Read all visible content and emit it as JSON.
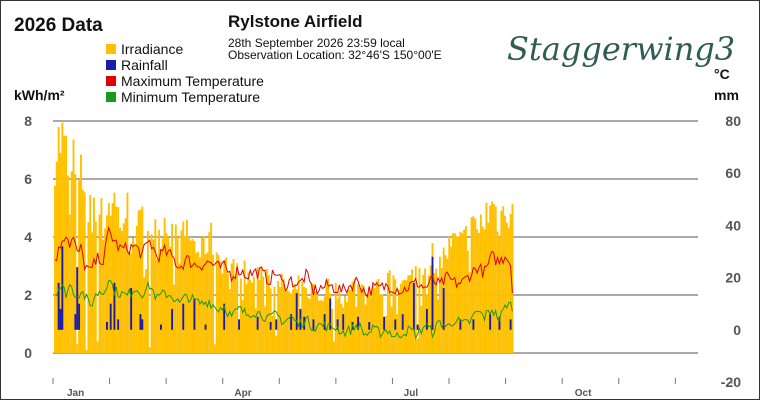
{
  "page_title": "2026 Data",
  "station": {
    "name": "Rylstone Airfield",
    "time_line": "28th September 2026  23:59 local",
    "location_line": "Observation Location:   32°46'S 150°00'E"
  },
  "logo_text": "Staggerwing3",
  "chart_data": {
    "type": "bar",
    "legend": [
      {
        "name": "Irradiance",
        "color": "#ffc000"
      },
      {
        "name": "Rainfall",
        "color": "#1c1ca8"
      },
      {
        "name": "Maximum Temperature",
        "color": "#e00000"
      },
      {
        "name": "Minimum Temperature",
        "color": "#1a9a1a"
      }
    ],
    "y_left": {
      "label": "kWh/m²",
      "min": -1,
      "max": 8,
      "ticks": [
        "8",
        "6",
        "4",
        "2",
        "0"
      ],
      "tick_values": [
        8,
        6,
        4,
        2,
        0
      ]
    },
    "y_right": {
      "label_top": "°C",
      "label_bottom": "mm",
      "min": -20,
      "max": 80,
      "ticks": [
        "80",
        "60",
        "40",
        "20",
        "0",
        "-20"
      ],
      "tick_values": [
        80,
        60,
        40,
        20,
        0,
        -20
      ]
    },
    "x_axis": {
      "start": "2026-01-01",
      "days": 365,
      "month_labels": [
        "Jan",
        "Apr",
        "Jul",
        "Oct"
      ],
      "month_label_days": [
        0,
        90,
        181,
        273
      ]
    },
    "grid": true,
    "series": {
      "irradiance_anchors": [
        [
          1,
          7.4
        ],
        [
          3,
          7.8
        ],
        [
          5,
          7.9
        ],
        [
          7,
          7.3
        ],
        [
          9,
          6.4
        ],
        [
          11,
          7.2
        ],
        [
          13,
          6.0
        ],
        [
          15,
          6.5
        ],
        [
          17,
          6.3
        ],
        [
          19,
          5.2
        ],
        [
          21,
          6.3
        ],
        [
          23,
          5.0
        ],
        [
          25,
          5.4
        ],
        [
          27,
          4.7
        ],
        [
          30,
          5.5
        ],
        [
          33,
          5.7
        ],
        [
          36,
          4.8
        ],
        [
          40,
          5.3
        ],
        [
          44,
          4.5
        ],
        [
          48,
          4.8
        ],
        [
          52,
          5.0
        ],
        [
          56,
          4.2
        ],
        [
          60,
          4.9
        ],
        [
          64,
          4.5
        ],
        [
          68,
          3.9
        ],
        [
          72,
          4.6
        ],
        [
          76,
          4.0
        ],
        [
          80,
          3.7
        ],
        [
          84,
          4.4
        ],
        [
          88,
          3.7
        ],
        [
          92,
          3.4
        ],
        [
          96,
          3.0
        ],
        [
          100,
          3.3
        ],
        [
          104,
          2.9
        ],
        [
          108,
          2.6
        ],
        [
          112,
          3.2
        ],
        [
          116,
          2.9
        ],
        [
          120,
          2.4
        ],
        [
          124,
          2.6
        ],
        [
          128,
          2.1
        ],
        [
          132,
          2.5
        ],
        [
          136,
          2.2
        ],
        [
          140,
          2.4
        ],
        [
          144,
          2.0
        ],
        [
          148,
          2.6
        ],
        [
          152,
          2.3
        ],
        [
          156,
          2.0
        ],
        [
          160,
          2.3
        ],
        [
          164,
          2.8
        ],
        [
          168,
          2.1
        ],
        [
          172,
          2.5
        ],
        [
          176,
          2.4
        ],
        [
          180,
          2.6
        ],
        [
          184,
          2.9
        ],
        [
          188,
          2.5
        ],
        [
          192,
          2.7
        ],
        [
          196,
          3.2
        ],
        [
          200,
          3.0
        ],
        [
          204,
          3.6
        ],
        [
          208,
          3.3
        ],
        [
          212,
          3.8
        ],
        [
          216,
          4.1
        ],
        [
          220,
          4.0
        ],
        [
          224,
          4.6
        ],
        [
          228,
          4.5
        ],
        [
          232,
          5.0
        ],
        [
          236,
          5.5
        ],
        [
          240,
          4.9
        ],
        [
          244,
          5.5
        ],
        [
          247,
          5.3
        ]
      ],
      "irradiance_low_days": [
        [
          13,
          0.3
        ],
        [
          18,
          0.1
        ],
        [
          24,
          0.4
        ],
        [
          52,
          0.2
        ],
        [
          87,
          0.3
        ],
        [
          100,
          0.8
        ],
        [
          120,
          0.6
        ],
        [
          151,
          0.4
        ],
        [
          178,
          1.0
        ],
        [
          196,
          0.5
        ]
      ],
      "rainfall_days": [
        [
          3,
          18
        ],
        [
          4,
          8
        ],
        [
          5,
          32
        ],
        [
          12,
          6
        ],
        [
          13,
          24
        ],
        [
          14,
          10
        ],
        [
          29,
          3
        ],
        [
          31,
          10
        ],
        [
          33,
          18
        ],
        [
          35,
          4
        ],
        [
          42,
          16
        ],
        [
          47,
          6
        ],
        [
          48,
          4
        ],
        [
          58,
          2
        ],
        [
          64,
          8
        ],
        [
          70,
          10
        ],
        [
          76,
          12
        ],
        [
          82,
          2
        ],
        [
          92,
          10
        ],
        [
          100,
          4
        ],
        [
          110,
          5
        ],
        [
          117,
          3
        ],
        [
          120,
          4
        ],
        [
          128,
          6
        ],
        [
          131,
          14
        ],
        [
          133,
          8
        ],
        [
          135,
          5
        ],
        [
          140,
          4
        ],
        [
          146,
          6
        ],
        [
          149,
          12
        ],
        [
          153,
          4
        ],
        [
          156,
          6
        ],
        [
          161,
          3
        ],
        [
          164,
          5
        ],
        [
          170,
          3
        ],
        [
          178,
          5
        ],
        [
          184,
          4
        ],
        [
          188,
          6
        ],
        [
          194,
          18
        ],
        [
          196,
          2
        ],
        [
          201,
          8
        ],
        [
          204,
          28
        ],
        [
          210,
          16
        ],
        [
          219,
          4
        ],
        [
          226,
          4
        ],
        [
          235,
          6
        ],
        [
          240,
          5
        ],
        [
          246,
          4
        ]
      ],
      "max_temp_anchors": [
        [
          1,
          27
        ],
        [
          3,
          30
        ],
        [
          5,
          35
        ],
        [
          7,
          37
        ],
        [
          9,
          33
        ],
        [
          11,
          35
        ],
        [
          13,
          29
        ],
        [
          15,
          31
        ],
        [
          17,
          25
        ],
        [
          20,
          22
        ],
        [
          22,
          25
        ],
        [
          25,
          28
        ],
        [
          27,
          26
        ],
        [
          30,
          38
        ],
        [
          33,
          34
        ],
        [
          36,
          31
        ],
        [
          40,
          31
        ],
        [
          44,
          32
        ],
        [
          48,
          29
        ],
        [
          52,
          34
        ],
        [
          56,
          28
        ],
        [
          60,
          30
        ],
        [
          64,
          28
        ],
        [
          68,
          24
        ],
        [
          72,
          27
        ],
        [
          76,
          25
        ],
        [
          80,
          25
        ],
        [
          84,
          26
        ],
        [
          88,
          24
        ],
        [
          92,
          24
        ],
        [
          96,
          21
        ],
        [
          100,
          23
        ],
        [
          104,
          21
        ],
        [
          108,
          22
        ],
        [
          112,
          22
        ],
        [
          116,
          19
        ],
        [
          120,
          22
        ],
        [
          124,
          17
        ],
        [
          128,
          19
        ],
        [
          132,
          17
        ],
        [
          136,
          21
        ],
        [
          140,
          15
        ],
        [
          144,
          16
        ],
        [
          148,
          17
        ],
        [
          152,
          16
        ],
        [
          156,
          15
        ],
        [
          160,
          17
        ],
        [
          164,
          19
        ],
        [
          168,
          14
        ],
        [
          172,
          16
        ],
        [
          176,
          16
        ],
        [
          180,
          17
        ],
        [
          184,
          16
        ],
        [
          188,
          15
        ],
        [
          192,
          17
        ],
        [
          196,
          18
        ],
        [
          200,
          16
        ],
        [
          204,
          19
        ],
        [
          208,
          17
        ],
        [
          212,
          20
        ],
        [
          216,
          18
        ],
        [
          220,
          18
        ],
        [
          224,
          21
        ],
        [
          228,
          24
        ],
        [
          232,
          22
        ],
        [
          236,
          28
        ],
        [
          240,
          26
        ],
        [
          244,
          29
        ],
        [
          246,
          25
        ],
        [
          247,
          15
        ]
      ],
      "min_temp_anchors": [
        [
          1,
          14
        ],
        [
          3,
          16
        ],
        [
          5,
          16
        ],
        [
          7,
          14
        ],
        [
          9,
          17
        ],
        [
          11,
          15
        ],
        [
          13,
          13
        ],
        [
          15,
          15
        ],
        [
          17,
          13
        ],
        [
          20,
          9
        ],
        [
          22,
          12
        ],
        [
          25,
          15
        ],
        [
          27,
          14
        ],
        [
          30,
          20
        ],
        [
          33,
          15
        ],
        [
          36,
          14
        ],
        [
          40,
          13
        ],
        [
          44,
          16
        ],
        [
          48,
          14
        ],
        [
          52,
          17
        ],
        [
          56,
          12
        ],
        [
          60,
          14
        ],
        [
          64,
          13
        ],
        [
          68,
          10
        ],
        [
          72,
          13
        ],
        [
          76,
          11
        ],
        [
          80,
          10
        ],
        [
          84,
          11
        ],
        [
          88,
          8
        ],
        [
          92,
          9
        ],
        [
          96,
          5
        ],
        [
          100,
          8
        ],
        [
          104,
          6
        ],
        [
          108,
          7
        ],
        [
          112,
          6
        ],
        [
          116,
          4
        ],
        [
          120,
          6
        ],
        [
          124,
          3
        ],
        [
          128,
          5
        ],
        [
          132,
          2
        ],
        [
          136,
          4
        ],
        [
          140,
          1
        ],
        [
          144,
          2
        ],
        [
          148,
          1
        ],
        [
          152,
          1
        ],
        [
          156,
          -1
        ],
        [
          160,
          0
        ],
        [
          164,
          2
        ],
        [
          168,
          -2
        ],
        [
          172,
          0
        ],
        [
          176,
          -1
        ],
        [
          180,
          0
        ],
        [
          184,
          -3
        ],
        [
          188,
          -1
        ],
        [
          192,
          0
        ],
        [
          196,
          -2
        ],
        [
          200,
          2
        ],
        [
          204,
          -1
        ],
        [
          208,
          3
        ],
        [
          212,
          1
        ],
        [
          216,
          4
        ],
        [
          220,
          2
        ],
        [
          224,
          3
        ],
        [
          228,
          7
        ],
        [
          232,
          5
        ],
        [
          236,
          8
        ],
        [
          240,
          4
        ],
        [
          244,
          10
        ],
        [
          247,
          9
        ]
      ]
    }
  }
}
